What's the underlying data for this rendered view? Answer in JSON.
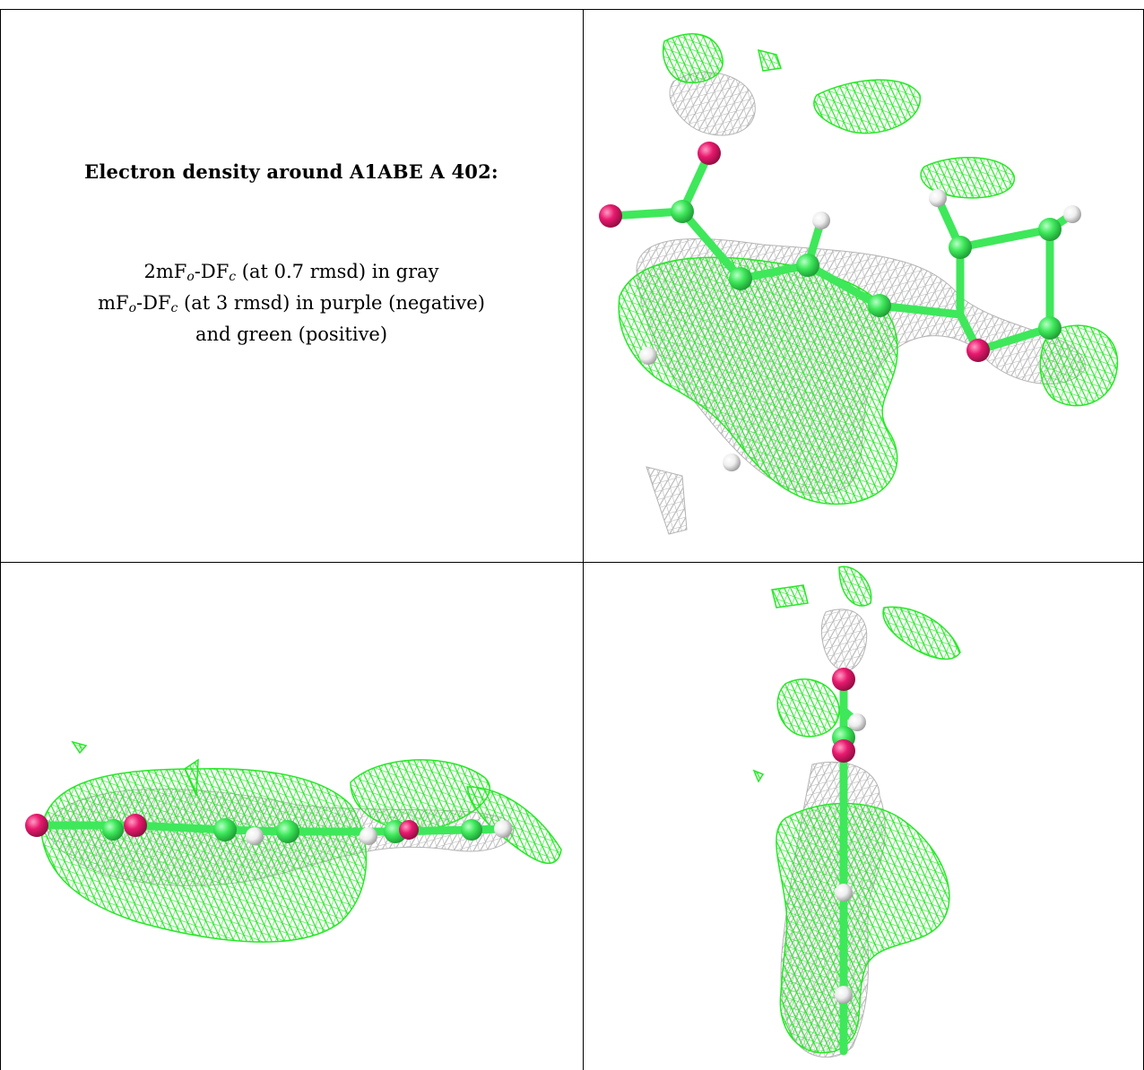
{
  "legend": {
    "title": "Electron density around A1ABE A 402:",
    "line1": {
      "a": "2mF",
      "a_sub": "o",
      "b": "-DF",
      "b_sub": "c",
      "rest": " (at 0.7 rmsd) in gray"
    },
    "line2": {
      "a": "mF",
      "a_sub": "o",
      "b": "-DF",
      "b_sub": "c",
      "rest": " (at 3 rmsd) in purple (negative)"
    },
    "line3": "and green (positive)"
  },
  "colors": {
    "map_2fofc": "#b4b4b4",
    "map_fofc_positive": "#26e826",
    "carbon": "#3ee85a",
    "oxygen": "#e8196e",
    "hydrogen": "#eeeeee",
    "rule": "#000000"
  },
  "views": [
    "view-1",
    "view-2",
    "view-3"
  ]
}
